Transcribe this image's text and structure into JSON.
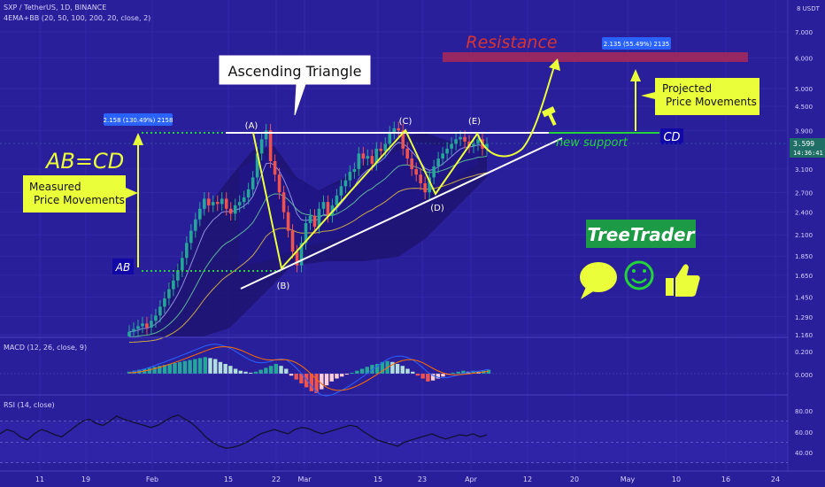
{
  "header": {
    "symbol_line": "SXP / TetherUS, 1D, BINANCE",
    "indicator_line": "4EMA+BB (20, 50, 100, 200, 20, close, 2)",
    "currency": "8 USDT"
  },
  "macd_panel": {
    "label": "MACD (12, 26, close, 9)",
    "ticks": [
      "0.200",
      "0.000"
    ]
  },
  "rsi_panel": {
    "label": "RSI (14, close)",
    "ticks": [
      "80.00",
      "60.00",
      "40.00"
    ]
  },
  "annotations": {
    "resistance": "Resistance",
    "ascending_triangle": "Ascending Triangle",
    "measured_line1": "Measured",
    "measured_line2": "Price Movements",
    "projected_line1": "Projected",
    "projected_line2": "Price Movements",
    "ab_cd": "AB=CD",
    "ab": "AB",
    "cd": "CD",
    "new_support": "new support",
    "pt_a": "(A)",
    "pt_b": "(B)",
    "pt_c": "(C)",
    "pt_d": "(D)",
    "pt_e": "(E)",
    "tag_ab": "2.158 (130.49%) 2158",
    "tag_cd": "2.135 (55.49%) 2135",
    "brand": "TreeTrader",
    "last_price": "3.599",
    "countdown": "14:36:41"
  },
  "colors": {
    "background": "#2a1f9a",
    "bull": "#26a69a",
    "bear": "#ef5350",
    "accent_yellow": "#eaff3a",
    "resistance_text": "#d9342f",
    "resistance_band": "#a3285c",
    "support_green": "#22d33a",
    "label_blue": "#2962ff"
  },
  "icons": [
    "speech-bubble-icon",
    "smiley-icon",
    "thumbs-up-icon",
    "hammer-icon"
  ],
  "chart_data": {
    "type": "candlestick",
    "price_axis": {
      "scale": "log",
      "ticks": [
        "7.000",
        "6.000",
        "5.000",
        "4.500",
        "3.900",
        "3.599",
        "3.100",
        "2.700",
        "2.400",
        "2.100",
        "1.850",
        "1.650",
        "1.450",
        "1.290",
        "1.160"
      ]
    },
    "time_axis": {
      "ticks": [
        "11",
        "19",
        "Feb",
        "15",
        "22",
        "Mar",
        "15",
        "23",
        "Apr",
        "12",
        "20",
        "May",
        "10",
        "16",
        "24"
      ]
    },
    "candles_close": [
      1.18,
      1.2,
      1.22,
      1.24,
      1.21,
      1.26,
      1.3,
      1.37,
      1.44,
      1.52,
      1.6,
      1.7,
      1.83,
      2.0,
      2.15,
      2.3,
      2.45,
      2.6,
      2.5,
      2.55,
      2.52,
      2.6,
      2.45,
      2.38,
      2.5,
      2.55,
      2.62,
      2.75,
      2.95,
      3.4,
      3.7,
      3.9,
      3.25,
      3.0,
      2.7,
      2.4,
      2.15,
      1.9,
      1.75,
      2.0,
      2.25,
      2.35,
      2.2,
      2.45,
      2.55,
      2.35,
      2.5,
      2.65,
      2.8,
      2.9,
      3.05,
      3.1,
      3.4,
      3.3,
      3.35,
      3.2,
      3.5,
      3.45,
      3.6,
      3.85,
      3.95,
      3.9,
      3.5,
      3.3,
      3.1,
      3.0,
      2.85,
      2.7,
      2.95,
      3.15,
      3.3,
      3.4,
      3.5,
      3.6,
      3.7,
      3.75,
      3.65,
      3.55,
      3.6,
      3.7,
      3.5,
      3.599
    ],
    "levels": {
      "resistance_top": 3.9,
      "resistance_zone": [
        5.9,
        6.3
      ],
      "support_target": 6.0,
      "AB_start": 1.7,
      "AB_end": 3.9,
      "AB_move": 2.158,
      "AB_move_pct": 130.49,
      "CD_move": 2.135,
      "CD_move_pct": 55.49
    },
    "macd": {
      "zero": 0,
      "histogram": [
        0.02,
        0.03,
        0.04,
        0.05,
        0.06,
        0.07,
        0.08,
        0.09,
        0.1,
        0.11,
        0.12,
        0.13,
        0.14,
        0.15,
        0.16,
        0.17,
        0.16,
        0.15,
        0.12,
        0.1,
        0.08,
        0.05,
        0.03,
        0.02,
        0.01,
        0.02,
        0.04,
        0.06,
        0.08,
        0.1,
        0.08,
        0.05,
        -0.02,
        -0.06,
        -0.1,
        -0.14,
        -0.18,
        -0.2,
        -0.16,
        -0.12,
        -0.08,
        -0.05,
        -0.03,
        -0.01,
        0.01,
        0.03,
        0.05,
        0.07,
        0.09,
        0.1,
        0.12,
        0.13,
        0.12,
        0.1,
        0.08,
        0.05,
        0.02,
        -0.02,
        -0.05,
        -0.08,
        -0.07,
        -0.05,
        -0.03,
        -0.01,
        0.01,
        0.02,
        0.03,
        0.02,
        0.03,
        0.02,
        0.03,
        0.04
      ]
    },
    "rsi": {
      "bands": [
        70,
        50,
        30
      ],
      "values": [
        58,
        62,
        60,
        55,
        52,
        58,
        62,
        60,
        57,
        55,
        60,
        65,
        70,
        72,
        68,
        66,
        70,
        75,
        72,
        70,
        68,
        66,
        64,
        66,
        70,
        74,
        76,
        72,
        68,
        62,
        55,
        50,
        46,
        44,
        45,
        47,
        50,
        54,
        58,
        60,
        62,
        60,
        58,
        62,
        64,
        63,
        60,
        58,
        60,
        62,
        64,
        66,
        65,
        60,
        56,
        52,
        50,
        48,
        46,
        50,
        52,
        54,
        56,
        58,
        55,
        53,
        55,
        57,
        56,
        58,
        55,
        57
      ]
    }
  }
}
